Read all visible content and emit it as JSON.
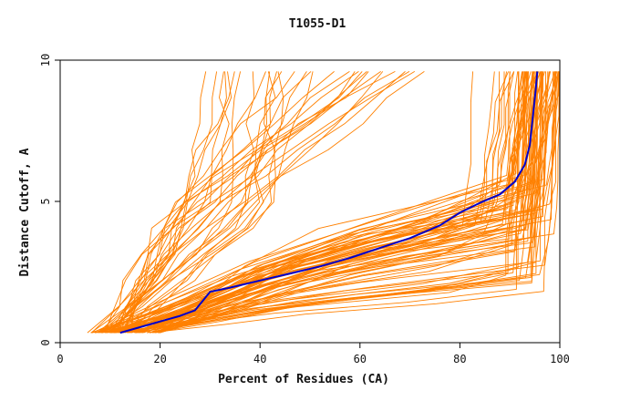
{
  "chart_data": {
    "type": "line",
    "title": "T1055-D1",
    "xlabel": "Percent of Residues (CA)",
    "ylabel": "Distance Cutoff, A",
    "xlim": [
      0,
      100
    ],
    "ylim": [
      0,
      10
    ],
    "x_ticks": [
      0,
      20,
      40,
      60,
      80,
      100
    ],
    "y_ticks": [
      0,
      5,
      10
    ],
    "grid": false,
    "legend": "none",
    "colors": {
      "models": "#ff8000",
      "highlight": "#0000cc",
      "axis": "#000000"
    },
    "highlight_series": {
      "points": [
        [
          12,
          0.35
        ],
        [
          15,
          0.5
        ],
        [
          18,
          0.65
        ],
        [
          21,
          0.8
        ],
        [
          24,
          0.95
        ],
        [
          27,
          1.15
        ],
        [
          30,
          1.8
        ],
        [
          34,
          1.95
        ],
        [
          40,
          2.2
        ],
        [
          46,
          2.45
        ],
        [
          52,
          2.7
        ],
        [
          58,
          3.0
        ],
        [
          64,
          3.35
        ],
        [
          70,
          3.7
        ],
        [
          76,
          4.15
        ],
        [
          80,
          4.6
        ],
        [
          84,
          4.95
        ],
        [
          88,
          5.25
        ],
        [
          91,
          5.7
        ],
        [
          93,
          6.3
        ],
        [
          94,
          7.0
        ],
        [
          94.6,
          8.0
        ],
        [
          95.2,
          9.0
        ],
        [
          95.5,
          9.6
        ]
      ]
    },
    "model_groups": {
      "good": {
        "count": 60,
        "start_x": [
          6,
          20
        ],
        "plateau_x": [
          52,
          78
        ],
        "knee_x": [
          88,
          99
        ],
        "knee_y": [
          1.8,
          6.0
        ]
      },
      "medium": {
        "count": 20,
        "start_x": [
          8,
          20
        ],
        "plateau_x": [
          58,
          75
        ],
        "knee_x": [
          80,
          96
        ],
        "knee_y": [
          3.5,
          5.0
        ]
      },
      "poor": {
        "count": 32,
        "start_x": [
          5,
          14
        ],
        "mid_x": [
          20,
          42
        ],
        "top_x": [
          28,
          75
        ]
      }
    }
  }
}
